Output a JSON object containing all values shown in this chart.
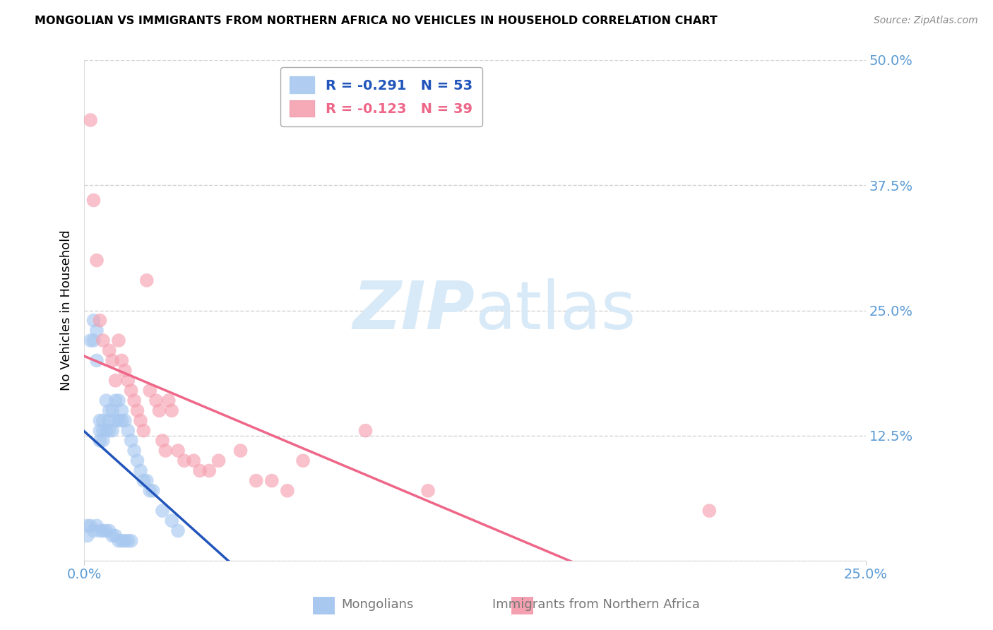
{
  "title": "MONGOLIAN VS IMMIGRANTS FROM NORTHERN AFRICA NO VEHICLES IN HOUSEHOLD CORRELATION CHART",
  "source": "Source: ZipAtlas.com",
  "ylabel": "No Vehicles in Household",
  "xlim": [
    0.0,
    0.25
  ],
  "ylim": [
    0.0,
    0.5
  ],
  "xtick_labels": [
    "0.0%",
    "25.0%"
  ],
  "xtick_vals": [
    0.0,
    0.25
  ],
  "ytick_labels": [
    "",
    "12.5%",
    "25.0%",
    "37.5%",
    "50.0%"
  ],
  "ytick_vals": [
    0.0,
    0.125,
    0.25,
    0.375,
    0.5
  ],
  "mongolian_color": "#a8c8f0",
  "northern_africa_color": "#f5a0b0",
  "trend_mongolian_color": "#2255bb",
  "trend_africa_color": "#ee6688",
  "r_mongolian": -0.291,
  "n_mongolian": 53,
  "r_africa": -0.123,
  "n_africa": 39,
  "mongolian_x": [
    0.001,
    0.001,
    0.002,
    0.002,
    0.003,
    0.003,
    0.003,
    0.004,
    0.004,
    0.004,
    0.005,
    0.005,
    0.005,
    0.005,
    0.006,
    0.006,
    0.006,
    0.006,
    0.007,
    0.007,
    0.007,
    0.008,
    0.008,
    0.008,
    0.008,
    0.009,
    0.009,
    0.009,
    0.01,
    0.01,
    0.01,
    0.011,
    0.011,
    0.011,
    0.012,
    0.012,
    0.012,
    0.013,
    0.013,
    0.014,
    0.014,
    0.015,
    0.015,
    0.016,
    0.017,
    0.018,
    0.019,
    0.02,
    0.021,
    0.022,
    0.025,
    0.028,
    0.03
  ],
  "mongolian_y": [
    0.035,
    0.025,
    0.22,
    0.035,
    0.24,
    0.22,
    0.03,
    0.23,
    0.2,
    0.035,
    0.14,
    0.13,
    0.12,
    0.03,
    0.14,
    0.13,
    0.12,
    0.03,
    0.16,
    0.13,
    0.03,
    0.15,
    0.14,
    0.13,
    0.03,
    0.15,
    0.13,
    0.025,
    0.16,
    0.14,
    0.025,
    0.16,
    0.14,
    0.02,
    0.15,
    0.14,
    0.02,
    0.14,
    0.02,
    0.13,
    0.02,
    0.12,
    0.02,
    0.11,
    0.1,
    0.09,
    0.08,
    0.08,
    0.07,
    0.07,
    0.05,
    0.04,
    0.03
  ],
  "africa_x": [
    0.002,
    0.003,
    0.004,
    0.005,
    0.006,
    0.008,
    0.009,
    0.01,
    0.011,
    0.012,
    0.013,
    0.014,
    0.015,
    0.016,
    0.017,
    0.018,
    0.019,
    0.02,
    0.021,
    0.023,
    0.024,
    0.025,
    0.026,
    0.027,
    0.028,
    0.03,
    0.032,
    0.035,
    0.037,
    0.04,
    0.043,
    0.05,
    0.055,
    0.06,
    0.065,
    0.07,
    0.09,
    0.11,
    0.2
  ],
  "africa_y": [
    0.44,
    0.36,
    0.3,
    0.24,
    0.22,
    0.21,
    0.2,
    0.18,
    0.22,
    0.2,
    0.19,
    0.18,
    0.17,
    0.16,
    0.15,
    0.14,
    0.13,
    0.28,
    0.17,
    0.16,
    0.15,
    0.12,
    0.11,
    0.16,
    0.15,
    0.11,
    0.1,
    0.1,
    0.09,
    0.09,
    0.1,
    0.11,
    0.08,
    0.08,
    0.07,
    0.1,
    0.13,
    0.07,
    0.05
  ],
  "background_color": "#ffffff",
  "grid_color": "#cccccc",
  "tick_color": "#5b9bd5",
  "watermark_zip": "ZIP",
  "watermark_atlas": "atlas",
  "watermark_color": "#d8eaf8"
}
